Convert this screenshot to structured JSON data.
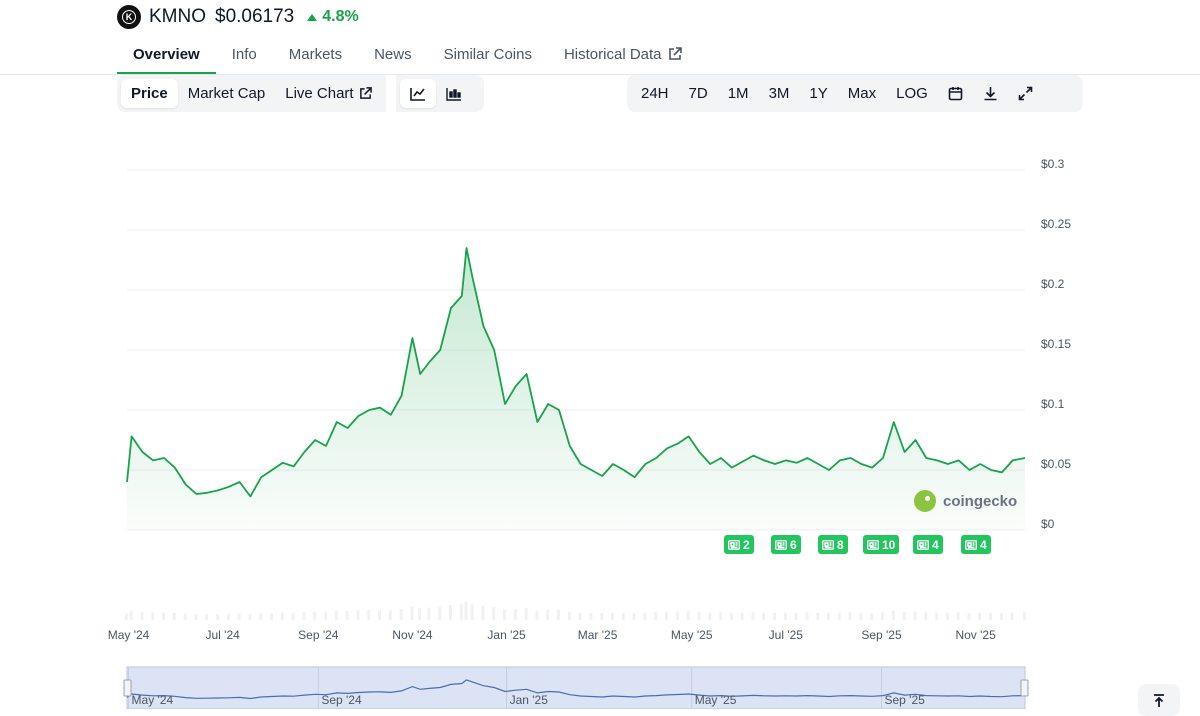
{
  "coin": {
    "symbol": "KMNO",
    "logo_letter": "K",
    "price": "$0.06173",
    "change": "4.8%",
    "change_direction": "up",
    "accent_color": "#16a34a"
  },
  "tabs": [
    {
      "label": "Overview",
      "active": true
    },
    {
      "label": "Info"
    },
    {
      "label": "Markets"
    },
    {
      "label": "News"
    },
    {
      "label": "Similar Coins"
    },
    {
      "label": "Historical Data",
      "icon": "external-link-icon"
    }
  ],
  "chart_toolbar": {
    "metrics": [
      {
        "label": "Price",
        "active": true
      },
      {
        "label": "Market Cap"
      },
      {
        "label": "Live Chart",
        "icon": "external-link-icon"
      }
    ],
    "chart_types": [
      {
        "icon": "line-chart-icon",
        "active": true
      },
      {
        "icon": "candlestick-chart-icon"
      }
    ],
    "ranges": [
      "24H",
      "7D",
      "1M",
      "3M",
      "1Y",
      "Max",
      "LOG"
    ],
    "actions": [
      "calendar-icon",
      "download-icon",
      "expand-icon"
    ]
  },
  "chart_data": {
    "type": "area",
    "x_ticks": [
      "May '24",
      "Jul '24",
      "Sep '24",
      "Nov '24",
      "Jan '25",
      "Mar '25",
      "May '25",
      "Jul '25",
      "Sep '25",
      "Nov '25"
    ],
    "y_ticks": [
      "$0",
      "$0.05",
      "$0.1",
      "$0.15",
      "$0.2",
      "$0.25",
      "$0.3"
    ],
    "ylim": [
      0,
      0.3
    ],
    "xlim": [
      "2024-04-30",
      "2025-12-03"
    ],
    "grid": true,
    "line_color": "#16a34a",
    "series": [
      {
        "x": [
          "2024-04-30",
          "2024-05-03",
          "2024-05-10",
          "2024-05-17",
          "2024-05-24",
          "2024-05-31",
          "2024-06-07",
          "2024-06-14",
          "2024-06-21",
          "2024-06-28",
          "2024-07-05",
          "2024-07-12",
          "2024-07-19",
          "2024-07-26",
          "2024-08-02",
          "2024-08-09",
          "2024-08-16",
          "2024-08-23",
          "2024-08-30",
          "2024-09-06",
          "2024-09-13",
          "2024-09-20",
          "2024-09-27",
          "2024-10-04",
          "2024-10-11",
          "2024-10-18",
          "2024-10-25",
          "2024-11-01",
          "2024-11-06",
          "2024-11-12",
          "2024-11-19",
          "2024-11-26",
          "2024-12-03",
          "2024-12-06",
          "2024-12-10",
          "2024-12-17",
          "2024-12-24",
          "2024-12-31",
          "2025-01-07",
          "2025-01-14",
          "2025-01-21",
          "2025-01-28",
          "2025-02-04",
          "2025-02-11",
          "2025-02-18",
          "2025-02-25",
          "2025-03-04",
          "2025-03-11",
          "2025-03-18",
          "2025-03-25",
          "2025-04-01",
          "2025-04-08",
          "2025-04-15",
          "2025-04-22",
          "2025-04-29",
          "2025-05-06",
          "2025-05-13",
          "2025-05-20",
          "2025-05-27",
          "2025-06-03",
          "2025-06-10",
          "2025-06-17",
          "2025-06-24",
          "2025-07-01",
          "2025-07-08",
          "2025-07-15",
          "2025-07-22",
          "2025-07-29",
          "2025-08-05",
          "2025-08-12",
          "2025-08-19",
          "2025-08-26",
          "2025-09-02",
          "2025-09-09",
          "2025-09-16",
          "2025-09-23",
          "2025-09-30",
          "2025-10-07",
          "2025-10-14",
          "2025-10-21",
          "2025-10-28",
          "2025-11-04",
          "2025-11-11",
          "2025-11-18",
          "2025-11-25",
          "2025-12-03"
        ],
        "y": [
          0.04,
          0.078,
          0.065,
          0.058,
          0.06,
          0.052,
          0.038,
          0.03,
          0.031,
          0.033,
          0.036,
          0.04,
          0.028,
          0.044,
          0.05,
          0.056,
          0.053,
          0.065,
          0.075,
          0.07,
          0.09,
          0.085,
          0.095,
          0.1,
          0.102,
          0.096,
          0.112,
          0.16,
          0.13,
          0.14,
          0.15,
          0.185,
          0.195,
          0.235,
          0.21,
          0.17,
          0.15,
          0.105,
          0.12,
          0.13,
          0.09,
          0.105,
          0.1,
          0.07,
          0.055,
          0.05,
          0.045,
          0.055,
          0.05,
          0.044,
          0.055,
          0.06,
          0.068,
          0.072,
          0.078,
          0.065,
          0.055,
          0.06,
          0.052,
          0.057,
          0.062,
          0.058,
          0.055,
          0.058,
          0.056,
          0.06,
          0.055,
          0.05,
          0.058,
          0.06,
          0.055,
          0.052,
          0.06,
          0.09,
          0.065,
          0.075,
          0.06,
          0.058,
          0.055,
          0.058,
          0.05,
          0.055,
          0.05,
          0.048,
          0.058,
          0.06
        ]
      }
    ],
    "navigator": {
      "x_ticks": [
        "May '24",
        "Sep '24",
        "Jan '25",
        "May '25",
        "Sep '25"
      ]
    }
  },
  "news_markers": [
    {
      "count": "2"
    },
    {
      "count": "6"
    },
    {
      "count": "8"
    },
    {
      "count": "10"
    },
    {
      "count": "4"
    },
    {
      "count": "4"
    }
  ],
  "watermark": {
    "text": "coingecko",
    "icon": "coingecko-logo"
  },
  "floating": {
    "icon": "scroll-to-top-icon"
  }
}
